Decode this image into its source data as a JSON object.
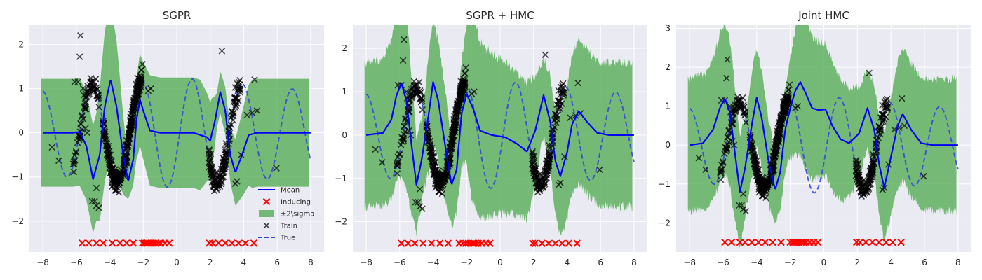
{
  "colors": {
    "mean": "#0000ff",
    "band": "#60b060",
    "true": "#3344dd",
    "train": "#000000",
    "inducing": "#ff0000",
    "background": "#eaeaf2",
    "grid": "#ffffff"
  },
  "legend": {
    "placement": "lower-right",
    "entries": [
      "Mean",
      "Inducing",
      "±2\\sigma",
      "Train",
      "True"
    ]
  },
  "chart_data": [
    {
      "type": "line",
      "title": "SGPR",
      "xlim": [
        -8.8,
        8.8
      ],
      "ylim": [
        -2.7,
        2.45
      ],
      "xticks": [
        -8,
        -6,
        -4,
        -2,
        0,
        2,
        4,
        6,
        8
      ],
      "yticks": [
        -2,
        -1,
        0,
        1,
        2
      ],
      "grid": true,
      "show_legend": true,
      "band_style": "smooth",
      "band_base": 1.22,
      "mean_anchors": [
        [
          -8,
          0
        ],
        [
          -6.2,
          0
        ],
        [
          -5.8,
          0.02
        ],
        [
          -5.4,
          -0.3
        ],
        [
          -5.0,
          -1.05
        ],
        [
          -4.6,
          -0.5
        ],
        [
          -4.3,
          0.6
        ],
        [
          -3.95,
          1.2
        ],
        [
          -3.6,
          0.6
        ],
        [
          -3.2,
          -0.5
        ],
        [
          -2.9,
          -1.1
        ],
        [
          -2.6,
          -0.6
        ],
        [
          -2.4,
          0.3
        ],
        [
          -2.2,
          0.75
        ],
        [
          -2.0,
          0.5
        ],
        [
          -1.6,
          0.05
        ],
        [
          -1.0,
          0.0
        ],
        [
          1.0,
          0.0
        ],
        [
          1.8,
          -0.1
        ],
        [
          2.0,
          -0.18
        ],
        [
          2.3,
          0.3
        ],
        [
          2.6,
          0.92
        ],
        [
          2.9,
          0.5
        ],
        [
          3.2,
          -0.5
        ],
        [
          3.5,
          -0.9
        ],
        [
          3.9,
          -0.5
        ],
        [
          4.3,
          -0.05
        ],
        [
          4.8,
          0.0
        ],
        [
          8,
          0
        ]
      ],
      "band_anchors": [
        [
          -8,
          1.22
        ],
        [
          -4.8,
          1.22
        ],
        [
          -4.6,
          1.5
        ],
        [
          -4.3,
          1.7
        ],
        [
          -4.0,
          1.72
        ],
        [
          -3.6,
          1.5
        ],
        [
          -3.2,
          0.9
        ],
        [
          -2.9,
          0.4
        ],
        [
          -2.6,
          0.6
        ],
        [
          -2.3,
          1.0
        ],
        [
          -2.0,
          1.1
        ],
        [
          -1.6,
          1.25
        ],
        [
          0,
          1.25
        ],
        [
          1.4,
          1.25
        ],
        [
          1.8,
          1.0
        ],
        [
          2.1,
          0.8
        ],
        [
          2.4,
          0.4
        ],
        [
          2.7,
          0.5
        ],
        [
          3.0,
          0.55
        ],
        [
          3.4,
          0.7
        ],
        [
          3.8,
          0.9
        ],
        [
          4.2,
          1.1
        ],
        [
          4.5,
          1.22
        ],
        [
          8,
          1.22
        ]
      ],
      "inducing_x": [
        -5.65,
        -5.25,
        -4.8,
        -4.4,
        -3.85,
        -3.4,
        -3.0,
        -2.6,
        -2.05,
        -1.95,
        -1.85,
        -1.75,
        -1.62,
        -1.5,
        -1.38,
        -1.25,
        -1.1,
        -0.95,
        -0.7,
        -0.45,
        1.95,
        2.15,
        2.5,
        2.9,
        3.3,
        3.7,
        4.1,
        4.6
      ],
      "inducing_y": -2.5,
      "true_amp": 1.25,
      "train_outliers": [
        [
          -5.9,
          1.15
        ],
        [
          -5.8,
          1.72
        ],
        [
          -5.75,
          2.2
        ],
        [
          -5.6,
          1.0
        ],
        [
          -5.55,
          0.85
        ],
        [
          -5.5,
          0.6
        ],
        [
          -5.45,
          0.1
        ],
        [
          -5.35,
          0.0
        ],
        [
          -5.05,
          -1.55
        ],
        [
          -4.9,
          -1.55
        ],
        [
          -4.8,
          -1.65
        ],
        [
          -4.65,
          -1.7
        ],
        [
          -4.8,
          -1.25
        ],
        [
          -7.45,
          -0.33
        ],
        [
          -7.05,
          -0.63
        ],
        [
          -6.1,
          1.15
        ],
        [
          -2.05,
          1.55
        ],
        [
          -1.7,
          0.95
        ],
        [
          -1.55,
          1.0
        ],
        [
          2.7,
          1.85
        ],
        [
          2.0,
          -0.88
        ],
        [
          4.5,
          0.45
        ],
        [
          4.65,
          1.2
        ],
        [
          4.8,
          0.5
        ],
        [
          5.95,
          -0.8
        ],
        [
          3.5,
          -1.15
        ],
        [
          3.6,
          -1.1
        ],
        [
          3.85,
          -0.5
        ],
        [
          4.2,
          0.4
        ]
      ]
    },
    {
      "type": "line",
      "title": "SGPR + HMC",
      "xlim": [
        -8.8,
        8.8
      ],
      "ylim": [
        -2.7,
        2.55
      ],
      "xticks": [
        -8,
        -6,
        -4,
        -2,
        0,
        2,
        4,
        6,
        8
      ],
      "yticks": [
        -2,
        -1,
        0,
        1,
        2
      ],
      "grid": true,
      "show_legend": false,
      "band_style": "noisy",
      "band_base": 1.65,
      "mean_anchors": [
        [
          -8,
          0
        ],
        [
          -7.0,
          0.05
        ],
        [
          -6.5,
          0.35
        ],
        [
          -6.2,
          0.9
        ],
        [
          -5.9,
          1.2
        ],
        [
          -5.6,
          0.8
        ],
        [
          -5.3,
          -0.2
        ],
        [
          -5.0,
          -1.15
        ],
        [
          -4.7,
          -0.6
        ],
        [
          -4.3,
          0.4
        ],
        [
          -4.0,
          1.22
        ],
        [
          -3.7,
          0.8
        ],
        [
          -3.3,
          -0.2
        ],
        [
          -2.9,
          -1.15
        ],
        [
          -2.6,
          -0.8
        ],
        [
          -2.3,
          0.5
        ],
        [
          -2.0,
          0.95
        ],
        [
          -1.6,
          0.6
        ],
        [
          -1.2,
          0.1
        ],
        [
          -0.5,
          0.0
        ],
        [
          0.3,
          -0.05
        ],
        [
          1.0,
          -0.2
        ],
        [
          1.6,
          -0.38
        ],
        [
          2.1,
          0.1
        ],
        [
          2.6,
          0.92
        ],
        [
          3.0,
          0.3
        ],
        [
          3.3,
          -0.6
        ],
        [
          3.6,
          -0.95
        ],
        [
          4.0,
          -0.4
        ],
        [
          4.3,
          0.25
        ],
        [
          4.7,
          0.55
        ],
        [
          5.2,
          0.3
        ],
        [
          5.8,
          0.05
        ],
        [
          6.5,
          0.0
        ],
        [
          8,
          0
        ]
      ],
      "band_anchors": [
        [
          -8,
          1.65
        ],
        [
          -7.0,
          1.7
        ],
        [
          -6.3,
          1.9
        ],
        [
          -5.9,
          2.15
        ],
        [
          -5.5,
          1.95
        ],
        [
          -5.0,
          1.1
        ],
        [
          -4.6,
          0.95
        ],
        [
          -4.2,
          1.4
        ],
        [
          -3.8,
          1.4
        ],
        [
          -3.3,
          1.3
        ],
        [
          -2.9,
          0.95
        ],
        [
          -2.5,
          1.0
        ],
        [
          -2.1,
          1.45
        ],
        [
          -1.7,
          2.2
        ],
        [
          -1.2,
          2.05
        ],
        [
          -0.6,
          1.9
        ],
        [
          0.2,
          1.75
        ],
        [
          1.0,
          1.65
        ],
        [
          1.6,
          1.55
        ],
        [
          2.1,
          1.3
        ],
        [
          2.5,
          0.9
        ],
        [
          2.9,
          1.0
        ],
        [
          3.3,
          1.2
        ],
        [
          3.8,
          1.5
        ],
        [
          4.5,
          1.65
        ],
        [
          5.5,
          1.65
        ],
        [
          8,
          1.65
        ]
      ],
      "inducing_x": [
        -5.9,
        -5.5,
        -5.1,
        -4.6,
        -4.1,
        -3.6,
        -3.1,
        -2.45,
        -2.2,
        -2.05,
        -1.9,
        -1.78,
        -1.65,
        -1.55,
        -1.45,
        -1.3,
        -1.1,
        -0.85,
        -0.6,
        1.95,
        2.1,
        2.5,
        2.9,
        3.3,
        3.7,
        4.1,
        4.6
      ],
      "inducing_y": -2.5,
      "true_amp": 1.25,
      "train_outliers": [
        [
          -5.9,
          1.15
        ],
        [
          -5.8,
          1.72
        ],
        [
          -5.75,
          2.2
        ],
        [
          -5.6,
          1.0
        ],
        [
          -5.55,
          0.85
        ],
        [
          -5.5,
          0.6
        ],
        [
          -5.45,
          0.1
        ],
        [
          -5.35,
          0.0
        ],
        [
          -5.05,
          -1.55
        ],
        [
          -4.9,
          -1.55
        ],
        [
          -4.8,
          -1.65
        ],
        [
          -4.65,
          -1.7
        ],
        [
          -4.8,
          -1.25
        ],
        [
          -7.45,
          -0.33
        ],
        [
          -7.05,
          -0.63
        ],
        [
          -6.1,
          1.15
        ],
        [
          -2.05,
          1.55
        ],
        [
          -1.7,
          0.95
        ],
        [
          -1.55,
          1.0
        ],
        [
          2.7,
          1.85
        ],
        [
          2.0,
          -0.88
        ],
        [
          4.5,
          0.45
        ],
        [
          4.65,
          1.2
        ],
        [
          4.8,
          0.5
        ],
        [
          5.95,
          -0.8
        ],
        [
          3.5,
          -1.15
        ],
        [
          3.6,
          -1.1
        ],
        [
          3.85,
          -0.5
        ],
        [
          4.2,
          0.4
        ]
      ]
    },
    {
      "type": "line",
      "title": "Joint HMC",
      "xlim": [
        -8.8,
        8.8
      ],
      "ylim": [
        -2.75,
        3.1
      ],
      "xticks": [
        -8,
        -6,
        -4,
        -2,
        0,
        2,
        4,
        6,
        8
      ],
      "yticks": [
        -2,
        -1,
        0,
        1,
        2,
        3
      ],
      "grid": true,
      "show_legend": false,
      "band_style": "noisy",
      "band_base": 1.7,
      "mean_anchors": [
        [
          -8,
          0
        ],
        [
          -7.2,
          0.05
        ],
        [
          -6.6,
          0.4
        ],
        [
          -6.2,
          0.95
        ],
        [
          -5.9,
          1.2
        ],
        [
          -5.6,
          0.85
        ],
        [
          -5.3,
          -0.2
        ],
        [
          -5.0,
          -1.2
        ],
        [
          -4.7,
          -0.6
        ],
        [
          -4.3,
          0.5
        ],
        [
          -4.0,
          1.22
        ],
        [
          -3.7,
          0.7
        ],
        [
          -3.3,
          -0.4
        ],
        [
          -2.9,
          -1.15
        ],
        [
          -2.6,
          -0.7
        ],
        [
          -2.3,
          0.4
        ],
        [
          -2.0,
          0.95
        ],
        [
          -1.7,
          1.4
        ],
        [
          -1.4,
          1.62
        ],
        [
          -1.1,
          1.35
        ],
        [
          -0.7,
          0.95
        ],
        [
          -0.3,
          0.9
        ],
        [
          0.1,
          0.92
        ],
        [
          0.5,
          0.5
        ],
        [
          1.0,
          0.15
        ],
        [
          1.5,
          0.05
        ],
        [
          2.1,
          0.3
        ],
        [
          2.6,
          0.95
        ],
        [
          3.0,
          0.4
        ],
        [
          3.3,
          -0.5
        ],
        [
          3.6,
          -1.1
        ],
        [
          4.0,
          -0.3
        ],
        [
          4.4,
          0.5
        ],
        [
          4.7,
          0.8
        ],
        [
          5.2,
          0.4
        ],
        [
          5.8,
          0.05
        ],
        [
          6.5,
          0.0
        ],
        [
          8,
          0
        ]
      ],
      "band_anchors": [
        [
          -8,
          1.7
        ],
        [
          -7.2,
          1.75
        ],
        [
          -6.5,
          1.85
        ],
        [
          -6.0,
          1.95
        ],
        [
          -5.5,
          1.85
        ],
        [
          -5.0,
          1.45
        ],
        [
          -4.6,
          1.2
        ],
        [
          -4.2,
          1.35
        ],
        [
          -3.8,
          1.25
        ],
        [
          -3.3,
          1.1
        ],
        [
          -2.9,
          0.9
        ],
        [
          -2.5,
          1.0
        ],
        [
          -2.1,
          1.2
        ],
        [
          -1.6,
          1.7
        ],
        [
          -1.2,
          2.0
        ],
        [
          -0.6,
          1.8
        ],
        [
          0.0,
          1.7
        ],
        [
          0.6,
          1.65
        ],
        [
          1.2,
          1.5
        ],
        [
          1.8,
          1.3
        ],
        [
          2.3,
          1.1
        ],
        [
          2.7,
          1.05
        ],
        [
          3.1,
          1.15
        ],
        [
          3.5,
          1.35
        ],
        [
          4.0,
          1.5
        ],
        [
          4.6,
          1.7
        ],
        [
          8,
          1.7
        ]
      ],
      "inducing_x": [
        -5.9,
        -5.5,
        -5.0,
        -4.7,
        -4.3,
        -3.9,
        -3.5,
        -3.05,
        -2.55,
        -2.0,
        -1.85,
        -1.75,
        -1.62,
        -1.5,
        -1.35,
        -1.2,
        -1.05,
        -0.85,
        -0.6,
        -0.35,
        1.95,
        2.15,
        2.5,
        2.9,
        3.3,
        3.7,
        4.1,
        4.6
      ],
      "inducing_y": -2.5,
      "true_amp": 1.25,
      "train_outliers": [
        [
          -5.9,
          1.15
        ],
        [
          -5.8,
          1.72
        ],
        [
          -5.75,
          2.2
        ],
        [
          -5.6,
          1.0
        ],
        [
          -5.55,
          0.85
        ],
        [
          -5.5,
          0.6
        ],
        [
          -5.45,
          0.1
        ],
        [
          -5.35,
          0.0
        ],
        [
          -5.05,
          -1.55
        ],
        [
          -4.9,
          -1.55
        ],
        [
          -4.8,
          -1.65
        ],
        [
          -4.65,
          -1.7
        ],
        [
          -4.8,
          -1.25
        ],
        [
          -7.45,
          -0.33
        ],
        [
          -7.05,
          -0.63
        ],
        [
          -6.1,
          1.15
        ],
        [
          -2.05,
          1.55
        ],
        [
          -1.7,
          0.95
        ],
        [
          -1.55,
          1.0
        ],
        [
          2.7,
          1.85
        ],
        [
          2.0,
          -0.88
        ],
        [
          4.5,
          0.45
        ],
        [
          4.65,
          1.2
        ],
        [
          4.8,
          0.5
        ],
        [
          5.95,
          -0.8
        ],
        [
          3.5,
          -1.15
        ],
        [
          3.6,
          -1.1
        ],
        [
          3.85,
          -0.5
        ],
        [
          4.2,
          0.4
        ]
      ]
    }
  ]
}
